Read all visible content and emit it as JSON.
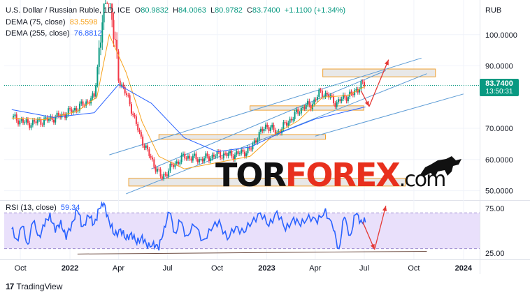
{
  "header": {
    "symbol": "U.S. Dollar / Russian Ruble, 1D, ICE",
    "open_label": "O",
    "open": "80.9832",
    "high_label": "H",
    "high": "84.0063",
    "low_label": "L",
    "low": "80.9782",
    "close_label": "C",
    "close": "83.7400",
    "change": "+1.1100 (+1.34%)"
  },
  "indicators": {
    "dema75_label": "DEMA (75, close)",
    "dema75_value": "83.5598",
    "dema255_label": "DEMA (255, close)",
    "dema255_value": "76.8812",
    "rsi_label": "RSI (13, close)",
    "rsi_value": "59.34"
  },
  "price_badge": {
    "price": "83.7400",
    "countdown": "13:50:31"
  },
  "currency": "RUB",
  "watermark": {
    "part1": "TOR",
    "part2": "FOREX",
    "part3": ".com"
  },
  "branding": {
    "name": "TradingView",
    "mark": "17"
  },
  "colors": {
    "up": "#089981",
    "down": "#f23645",
    "dema75": "#f7a21b",
    "dema255": "#2962ff",
    "trendline": "#5b9bd5",
    "zone": "#d9d9d9",
    "zone_border": "#f0a030",
    "rsi": "#2962ff",
    "rsi_band": "#e9e0fb",
    "arrow": "#e53935"
  },
  "chart_data": [
    {
      "type": "candlestick",
      "title": "U.S. Dollar / Russian Ruble, 1D, ICE",
      "ylabel": "RUB",
      "ylim": [
        47,
        110
      ],
      "y_ticks": [
        "100.0000",
        "90.0000",
        "70.0000",
        "60.0000",
        "50.0000"
      ],
      "x_ticks": [
        "Oct",
        "2022",
        "Apr",
        "Jul",
        "Oct",
        "2023",
        "Apr",
        "Jul",
        "Oct",
        "2024"
      ],
      "price_path": {
        "dates": [
          "2021-09-15",
          "2021-10-15",
          "2021-11-15",
          "2021-12-15",
          "2022-01-15",
          "2022-02-15",
          "2022-03-01",
          "2022-03-10",
          "2022-03-20",
          "2022-04-01",
          "2022-04-20",
          "2022-05-10",
          "2022-06-01",
          "2022-06-20",
          "2022-07-10",
          "2022-08-01",
          "2022-09-01",
          "2022-10-01",
          "2022-11-01",
          "2022-12-01",
          "2022-12-15",
          "2023-01-01",
          "2023-01-20",
          "2023-02-15",
          "2023-03-10",
          "2023-03-25",
          "2023-04-10",
          "2023-04-25",
          "2023-05-10",
          "2023-05-25",
          "2023-06-10",
          "2023-06-25",
          "2023-07-03"
        ],
        "values": [
          73.5,
          71.5,
          72.5,
          74,
          76.5,
          80,
          103,
          118,
          105,
          86,
          79,
          68,
          60,
          54,
          58,
          61,
          60,
          61.5,
          61.5,
          63,
          67.5,
          71,
          68.5,
          73,
          77,
          77.5,
          81.5,
          80.5,
          78,
          80,
          81,
          84,
          83.74
        ]
      },
      "series": [
        {
          "name": "DEMA (75, close)",
          "value_last": 83.5598,
          "dates": [
            "2021-09-15",
            "2021-11-15",
            "2022-01-15",
            "2022-02-20",
            "2022-03-15",
            "2022-04-15",
            "2022-05-15",
            "2022-06-15",
            "2022-08-01",
            "2022-10-01",
            "2022-12-01",
            "2023-01-15",
            "2023-03-01",
            "2023-04-15",
            "2023-06-01",
            "2023-07-03"
          ],
          "values": [
            73.3,
            72.8,
            75.5,
            80,
            100,
            88,
            72,
            61,
            57,
            59,
            61,
            68,
            72.5,
            80,
            80.5,
            83.56
          ]
        },
        {
          "name": "DEMA (255, close)",
          "value_last": 76.8812,
          "dates": [
            "2021-09-15",
            "2021-12-01",
            "2022-02-15",
            "2022-04-01",
            "2022-06-01",
            "2022-08-01",
            "2022-10-01",
            "2022-12-01",
            "2023-02-01",
            "2023-04-01",
            "2023-07-03"
          ],
          "values": [
            76,
            73.5,
            75,
            84,
            78,
            67,
            62.5,
            64,
            69,
            73,
            76.88
          ]
        }
      ],
      "zones": [
        {
          "date_from": "2023-04-15",
          "date_to": "2023-11-10",
          "low": 86.5,
          "high": 89
        },
        {
          "date_from": "2022-12-01",
          "date_to": "2023-06-30",
          "low": 75.8,
          "high": 77.2
        },
        {
          "date_from": "2022-06-15",
          "date_to": "2023-04-20",
          "low": 66.5,
          "high": 68
        },
        {
          "date_from": "2022-04-20",
          "date_to": "2023-09-15",
          "low": 51.5,
          "high": 54
        }
      ],
      "trendlines": [
        {
          "start": [
            "2022-03-15",
            61.5
          ],
          "end": [
            "2023-10-15",
            92.5
          ]
        },
        {
          "start": [
            "2022-04-15",
            49
          ],
          "end": [
            "2023-10-25",
            87.5
          ]
        },
        {
          "start": [
            "2022-06-01",
            57
          ],
          "end": [
            "2023-08-10",
            88.5
          ]
        },
        {
          "start": [
            "2023-04-01",
            67.5
          ],
          "end": [
            "2024-01-01",
            81
          ]
        }
      ],
      "forecast_arrows": [
        {
          "from": [
            "2023-06-25",
            82
          ],
          "to": [
            "2023-07-10",
            77
          ]
        },
        {
          "from": [
            "2023-07-10",
            77
          ],
          "to": [
            "2023-08-15",
            92
          ]
        }
      ]
    },
    {
      "type": "line",
      "title": "RSI (13, close)",
      "ylim": [
        18,
        82
      ],
      "y_ticks": [
        "75.00",
        "25.00"
      ],
      "band": [
        30,
        70
      ],
      "series": [
        {
          "name": "RSI (13, close)",
          "value_last": 59.34,
          "dates": [
            "2021-09-15",
            "2021-09-25",
            "2021-10-05",
            "2021-10-15",
            "2021-10-25",
            "2021-11-05",
            "2021-11-15",
            "2021-11-25",
            "2021-12-05",
            "2021-12-15",
            "2021-12-25",
            "2022-01-05",
            "2022-01-15",
            "2022-01-25",
            "2022-02-05",
            "2022-02-15",
            "2022-02-25",
            "2022-03-05",
            "2022-03-15",
            "2022-03-25",
            "2022-04-05",
            "2022-04-15",
            "2022-04-25",
            "2022-05-05",
            "2022-05-15",
            "2022-05-25",
            "2022-06-05",
            "2022-06-15",
            "2022-06-25",
            "2022-07-05",
            "2022-07-15",
            "2022-07-25",
            "2022-08-05",
            "2022-08-20",
            "2022-09-05",
            "2022-09-20",
            "2022-10-05",
            "2022-10-20",
            "2022-11-05",
            "2022-11-20",
            "2022-12-05",
            "2022-12-20",
            "2023-01-05",
            "2023-01-20",
            "2023-02-05",
            "2023-02-20",
            "2023-03-05",
            "2023-03-20",
            "2023-04-05",
            "2023-04-20",
            "2023-05-05",
            "2023-05-15",
            "2023-05-25",
            "2023-06-05",
            "2023-06-15",
            "2023-06-25",
            "2023-07-03"
          ],
          "values": [
            52,
            40,
            55,
            35,
            60,
            45,
            55,
            70,
            48,
            62,
            40,
            60,
            72,
            55,
            66,
            58,
            75,
            82,
            60,
            45,
            52,
            40,
            48,
            35,
            45,
            30,
            38,
            28,
            55,
            70,
            48,
            60,
            45,
            55,
            40,
            50,
            62,
            40,
            55,
            48,
            60,
            70,
            55,
            72,
            50,
            65,
            55,
            68,
            58,
            75,
            50,
            30,
            65,
            45,
            68,
            62,
            59.34
          ]
        }
      ],
      "trendline": {
        "start": [
          "2022-01-15",
          24
        ],
        "end": [
          "2023-10-25",
          27
        ]
      },
      "forecast_arrows": [
        {
          "from": [
            "2023-06-28",
            60
          ],
          "to": [
            "2023-07-20",
            29
          ]
        },
        {
          "from": [
            "2023-07-20",
            29
          ],
          "to": [
            "2023-08-10",
            78
          ]
        }
      ]
    }
  ]
}
